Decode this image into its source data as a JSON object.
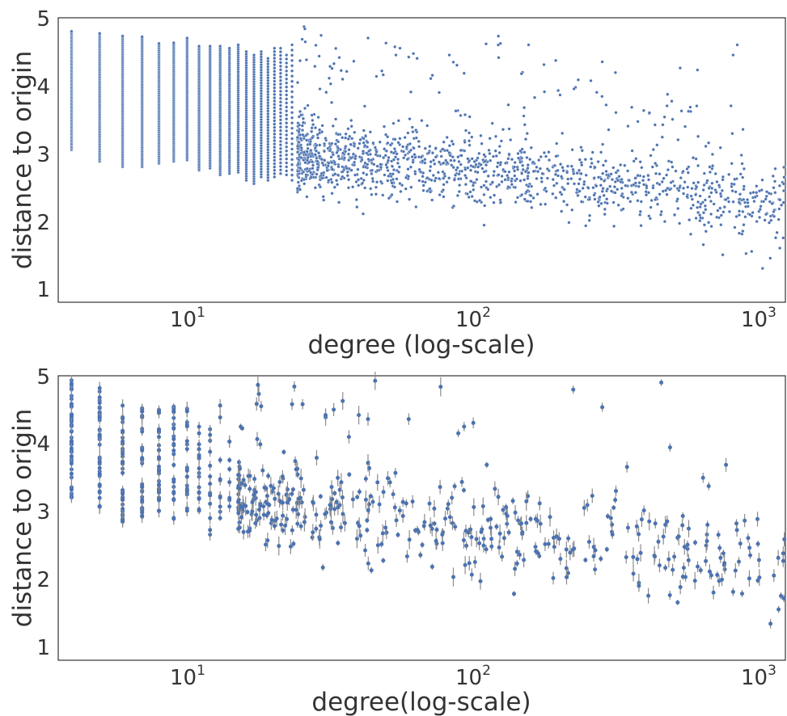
{
  "chart_data": [
    {
      "type": "scatter",
      "xlabel": "degree (log-scale)",
      "ylabel": "distance to origin",
      "xscale": "log",
      "xlim": [
        3.6,
        1150
      ],
      "ylim": [
        0.8,
        5.0
      ],
      "xticks": [
        {
          "base": "10",
          "exp": "1",
          "value": 10
        },
        {
          "base": "10",
          "exp": "2",
          "value": 100
        },
        {
          "base": "10",
          "exp": "3",
          "value": 1000
        }
      ],
      "yticks": [
        "1",
        "2",
        "3",
        "4",
        "5"
      ],
      "grid": false,
      "marker_color": "#4c72b0",
      "column_bands": [
        {
          "x": 4,
          "ymin": 3.05,
          "ymax": 4.8
        },
        {
          "x": 5,
          "ymin": 2.88,
          "ymax": 4.77
        },
        {
          "x": 6,
          "ymin": 2.8,
          "ymax": 4.73
        },
        {
          "x": 7,
          "ymin": 2.8,
          "ymax": 4.72
        },
        {
          "x": 8,
          "ymin": 2.85,
          "ymax": 4.62
        },
        {
          "x": 9,
          "ymin": 2.88,
          "ymax": 4.63
        },
        {
          "x": 10,
          "ymin": 2.9,
          "ymax": 4.7
        },
        {
          "x": 11,
          "ymin": 2.75,
          "ymax": 4.58
        },
        {
          "x": 12,
          "ymin": 2.78,
          "ymax": 4.58
        },
        {
          "x": 13,
          "ymin": 2.68,
          "ymax": 4.58
        },
        {
          "x": 14,
          "ymin": 2.7,
          "ymax": 4.55
        },
        {
          "x": 15,
          "ymin": 2.72,
          "ymax": 4.6
        },
        {
          "x": 16,
          "ymin": 2.6,
          "ymax": 4.5
        },
        {
          "x": 17,
          "ymin": 2.55,
          "ymax": 4.45
        },
        {
          "x": 18,
          "ymin": 2.65,
          "ymax": 4.5
        },
        {
          "x": 19,
          "ymin": 2.6,
          "ymax": 4.4
        },
        {
          "x": 20,
          "ymin": 2.65,
          "ymax": 4.55
        },
        {
          "x": 21,
          "ymin": 2.7,
          "ymax": 4.55
        },
        {
          "x": 22,
          "ymin": 2.68,
          "ymax": 4.45
        },
        {
          "x": 23,
          "ymin": 2.6,
          "ymax": 4.6
        }
      ],
      "cloud": {
        "xmin": 24,
        "xmax": 1150,
        "center_at_25": 3.0,
        "center_at_1000": 2.3,
        "spread": 0.28
      },
      "outliers": [
        {
          "x": 42,
          "y": 4.7
        },
        {
          "x": 120,
          "y": 4.62
        },
        {
          "x": 150,
          "y": 4.6
        },
        {
          "x": 80,
          "y": 4.45
        },
        {
          "x": 85,
          "y": 4.3
        },
        {
          "x": 58,
          "y": 4.42
        },
        {
          "x": 62,
          "y": 4.4
        },
        {
          "x": 70,
          "y": 4.15
        },
        {
          "x": 90,
          "y": 4.18
        },
        {
          "x": 215,
          "y": 3.95
        },
        {
          "x": 300,
          "y": 3.6
        },
        {
          "x": 330,
          "y": 3.4
        },
        {
          "x": 450,
          "y": 3.7
        },
        {
          "x": 470,
          "y": 3.5
        },
        {
          "x": 760,
          "y": 4.45
        },
        {
          "x": 785,
          "y": 4.6
        },
        {
          "x": 960,
          "y": 1.3
        },
        {
          "x": 1020,
          "y": 1.45
        },
        {
          "x": 880,
          "y": 1.55
        },
        {
          "x": 700,
          "y": 1.5
        },
        {
          "x": 1100,
          "y": 1.6
        },
        {
          "x": 1130,
          "y": 1.75
        },
        {
          "x": 600,
          "y": 1.65
        },
        {
          "x": 820,
          "y": 1.85
        }
      ]
    },
    {
      "type": "scatter",
      "variant": "point-with-error-bars",
      "xlabel": "degree(log-scale)",
      "ylabel": "distance to origin",
      "xscale": "log",
      "xlim": [
        3.6,
        1150
      ],
      "ylim": [
        0.8,
        5.0
      ],
      "xticks": [
        {
          "base": "10",
          "exp": "1",
          "value": 10
        },
        {
          "base": "10",
          "exp": "2",
          "value": 100
        },
        {
          "base": "10",
          "exp": "3",
          "value": 1000
        }
      ],
      "yticks": [
        "1",
        "2",
        "3",
        "4",
        "5"
      ],
      "grid": false,
      "marker_color": "#4c72b0",
      "errorbar_color": "#8c8c8c",
      "column_bands": [
        {
          "x": 4,
          "ymin": 3.2,
          "ymax": 4.97
        },
        {
          "x": 5,
          "ymin": 3.05,
          "ymax": 4.85
        },
        {
          "x": 6,
          "ymin": 2.8,
          "ymax": 4.62
        },
        {
          "x": 7,
          "ymin": 2.92,
          "ymax": 4.58
        },
        {
          "x": 8,
          "ymin": 3.0,
          "ymax": 4.5
        },
        {
          "x": 9,
          "ymin": 2.88,
          "ymax": 4.58
        },
        {
          "x": 10,
          "ymin": 3.0,
          "ymax": 4.55
        },
        {
          "x": 11,
          "ymin": 3.0,
          "ymax": 4.35
        },
        {
          "x": 12,
          "ymin": 2.65,
          "ymax": 4.3
        },
        {
          "x": 13,
          "ymin": 2.85,
          "ymax": 4.6
        },
        {
          "x": 14,
          "ymin": 2.9,
          "ymax": 4.3
        }
      ],
      "cloud": {
        "xmin": 15,
        "xmax": 1150,
        "center_at_25": 3.05,
        "center_at_1000": 2.2,
        "spread": 0.33
      },
      "outliers": [
        {
          "x": 430,
          "y": 4.9
        },
        {
          "x": 90,
          "y": 4.25
        },
        {
          "x": 58,
          "y": 4.36
        },
        {
          "x": 42,
          "y": 4.36
        },
        {
          "x": 30,
          "y": 4.42
        },
        {
          "x": 32,
          "y": 4.5
        },
        {
          "x": 25,
          "y": 4.58
        },
        {
          "x": 23,
          "y": 4.58
        },
        {
          "x": 18,
          "y": 4.55
        },
        {
          "x": 300,
          "y": 3.3
        },
        {
          "x": 510,
          "y": 2.93
        },
        {
          "x": 410,
          "y": 2.82
        },
        {
          "x": 620,
          "y": 2.8
        },
        {
          "x": 780,
          "y": 2.82
        },
        {
          "x": 870,
          "y": 2.35
        },
        {
          "x": 1050,
          "y": 2.05
        },
        {
          "x": 1110,
          "y": 1.75
        },
        {
          "x": 1090,
          "y": 1.55
        },
        {
          "x": 650,
          "y": 1.8
        },
        {
          "x": 680,
          "y": 1.97
        },
        {
          "x": 500,
          "y": 1.88
        },
        {
          "x": 420,
          "y": 2.55
        },
        {
          "x": 360,
          "y": 1.9
        }
      ]
    }
  ]
}
